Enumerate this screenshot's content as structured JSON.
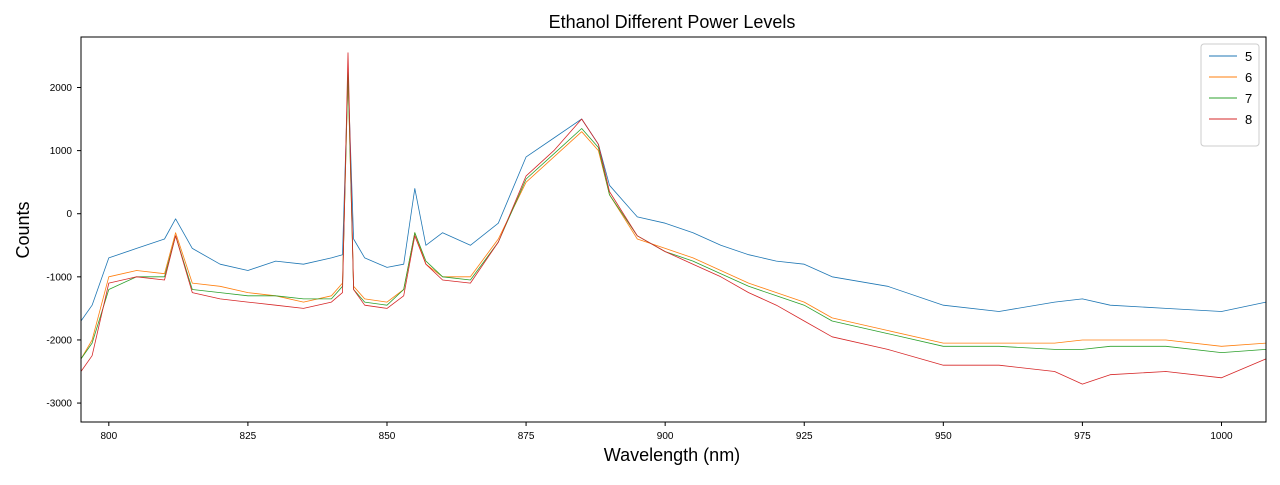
{
  "chart_data": {
    "type": "line",
    "title": "Ethanol Different Power Levels",
    "xlabel": "Wavelength (nm)",
    "ylabel": "Counts",
    "xlim": [
      795,
      1008
    ],
    "ylim": [
      -3300,
      2800
    ],
    "xticks": [
      800,
      825,
      850,
      875,
      900,
      925,
      950,
      975,
      1000
    ],
    "yticks": [
      -3000,
      -2000,
      -1000,
      0,
      1000,
      2000
    ],
    "grid": false,
    "legend_position": "top-right",
    "colors": {
      "5": "#1f77b4",
      "6": "#ff7f0e",
      "7": "#2ca02c",
      "8": "#d62728"
    },
    "x": [
      795,
      797,
      800,
      805,
      810,
      812,
      815,
      820,
      825,
      830,
      835,
      840,
      842,
      843,
      844,
      846,
      850,
      853,
      855,
      857,
      860,
      865,
      870,
      875,
      880,
      885,
      888,
      890,
      895,
      900,
      905,
      910,
      915,
      920,
      925,
      930,
      940,
      950,
      960,
      970,
      975,
      980,
      990,
      1000,
      1008
    ],
    "series": [
      {
        "name": "5",
        "values": [
          -1700,
          -1450,
          -700,
          -550,
          -400,
          -80,
          -550,
          -800,
          -900,
          -750,
          -800,
          -700,
          -650,
          2200,
          -400,
          -700,
          -850,
          -800,
          400,
          -500,
          -300,
          -500,
          -150,
          900,
          1200,
          1500,
          1100,
          450,
          -50,
          -150,
          -300,
          -500,
          -650,
          -750,
          -800,
          -1000,
          -1150,
          -1450,
          -1550,
          -1400,
          -1350,
          -1450,
          -1500,
          -1550,
          -1400
        ]
      },
      {
        "name": "6",
        "values": [
          -2300,
          -2000,
          -1000,
          -900,
          -950,
          -300,
          -1100,
          -1150,
          -1250,
          -1300,
          -1400,
          -1300,
          -1100,
          2200,
          -1150,
          -1350,
          -1400,
          -1200,
          -300,
          -800,
          -1000,
          -1000,
          -400,
          500,
          900,
          1300,
          1000,
          300,
          -400,
          -550,
          -700,
          -900,
          -1100,
          -1250,
          -1400,
          -1650,
          -1850,
          -2050,
          -2050,
          -2050,
          -2000,
          -2000,
          -2000,
          -2100,
          -2050
        ]
      },
      {
        "name": "7",
        "values": [
          -2300,
          -2050,
          -1200,
          -1000,
          -1000,
          -350,
          -1200,
          -1250,
          -1300,
          -1300,
          -1350,
          -1350,
          -1150,
          2250,
          -1200,
          -1400,
          -1450,
          -1200,
          -300,
          -750,
          -1000,
          -1050,
          -450,
          550,
          950,
          1350,
          1050,
          300,
          -350,
          -600,
          -750,
          -950,
          -1150,
          -1300,
          -1450,
          -1700,
          -1900,
          -2100,
          -2100,
          -2150,
          -2150,
          -2100,
          -2100,
          -2200,
          -2150
        ]
      },
      {
        "name": "8",
        "values": [
          -2500,
          -2250,
          -1100,
          -1000,
          -1050,
          -350,
          -1250,
          -1350,
          -1400,
          -1450,
          -1500,
          -1400,
          -1250,
          2550,
          -1200,
          -1450,
          -1500,
          -1300,
          -350,
          -800,
          -1050,
          -1100,
          -450,
          600,
          1000,
          1500,
          1100,
          350,
          -350,
          -600,
          -800,
          -1000,
          -1250,
          -1450,
          -1700,
          -1950,
          -2150,
          -2400,
          -2400,
          -2500,
          -2700,
          -2550,
          -2500,
          -2600,
          -2300
        ]
      }
    ]
  }
}
